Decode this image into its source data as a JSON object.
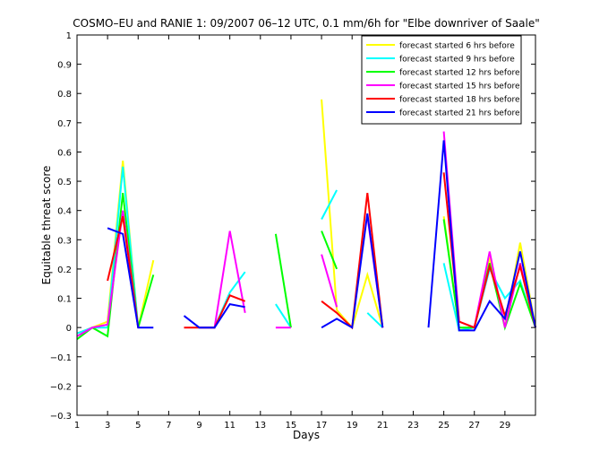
{
  "chart_data": {
    "type": "line",
    "title": "COSMO–EU and RANIE 1: 09/2007 06–12 UTC, 0.1 mm/6h for \"Elbe downriver of Saale\"",
    "xlabel": "Days",
    "ylabel": "Equitable threat score",
    "xlim": [
      1,
      31
    ],
    "ylim": [
      -0.3,
      1
    ],
    "xticks": [
      1,
      3,
      5,
      7,
      9,
      11,
      13,
      15,
      17,
      19,
      21,
      23,
      25,
      27,
      29
    ],
    "yticks": [
      -0.3,
      -0.2,
      -0.1,
      0,
      0.1,
      0.2,
      0.3,
      0.4,
      0.5,
      0.6,
      0.7,
      0.8,
      0.9,
      1
    ],
    "ytick_labels": [
      "−0.3",
      "−0.2",
      "−0.1",
      "0",
      "0.1",
      "0.2",
      "0.3",
      "0.4",
      "0.5",
      "0.6",
      "0.7",
      "0.8",
      "0.9",
      "1"
    ],
    "grid": false,
    "legend_position": "top-right",
    "series": [
      {
        "name": "forecast started 6 hrs before",
        "color": "#ffff00",
        "values": [
          -0.02,
          0.0,
          0.02,
          0.57,
          0.0,
          0.23,
          null,
          null,
          null,
          null,
          null,
          null,
          null,
          null,
          null,
          null,
          0.78,
          0.06,
          0.0,
          0.18,
          0.0,
          null,
          null,
          null,
          0.38,
          0.0,
          0.0,
          0.24,
          0.0,
          0.29,
          0.0
        ]
      },
      {
        "name": "forecast started 9 hrs before",
        "color": "#00ffff",
        "values": [
          -0.02,
          0.0,
          0.0,
          0.55,
          0.0,
          null,
          null,
          null,
          0.0,
          0.0,
          0.12,
          0.19,
          null,
          0.08,
          0.0,
          null,
          0.37,
          0.47,
          null,
          0.05,
          0.0,
          null,
          null,
          null,
          0.22,
          -0.01,
          0.0,
          0.2,
          0.1,
          0.16,
          0.0
        ]
      },
      {
        "name": "forecast started 12 hrs before",
        "color": "#00ff00",
        "values": [
          -0.04,
          0.0,
          -0.03,
          0.46,
          0.0,
          0.18,
          null,
          null,
          null,
          null,
          null,
          null,
          null,
          0.32,
          0.0,
          null,
          0.33,
          0.2,
          null,
          null,
          null,
          null,
          null,
          null,
          0.37,
          0.0,
          0.0,
          0.22,
          0.0,
          0.15,
          0.0
        ]
      },
      {
        "name": "forecast started 15 hrs before",
        "color": "#ff00ff",
        "values": [
          -0.03,
          0.0,
          0.01,
          0.4,
          0.0,
          null,
          null,
          null,
          0.0,
          0.0,
          0.33,
          0.05,
          null,
          0.0,
          0.0,
          null,
          0.25,
          0.07,
          null,
          0.38,
          0.0,
          null,
          null,
          null,
          0.67,
          0.02,
          0.0,
          0.26,
          0.0,
          0.22,
          0.0
        ]
      },
      {
        "name": "forecast started 18 hrs before",
        "color": "#ff0000",
        "values": [
          null,
          null,
          0.16,
          0.38,
          0.0,
          null,
          null,
          0.0,
          0.0,
          0.0,
          0.11,
          0.09,
          null,
          null,
          null,
          null,
          0.09,
          0.05,
          0.0,
          0.46,
          0.0,
          null,
          null,
          null,
          0.53,
          0.02,
          0.0,
          0.21,
          0.04,
          0.21,
          0.0
        ]
      },
      {
        "name": "forecast started 21 hrs before",
        "color": "#0000ff",
        "values": [
          null,
          null,
          0.34,
          0.32,
          0.0,
          0.0,
          null,
          0.04,
          0.0,
          0.0,
          0.08,
          0.07,
          null,
          null,
          null,
          null,
          0.0,
          0.03,
          0.0,
          0.39,
          0.0,
          null,
          null,
          0.0,
          0.64,
          -0.01,
          -0.01,
          0.09,
          0.03,
          0.26,
          0.0
        ]
      }
    ]
  }
}
